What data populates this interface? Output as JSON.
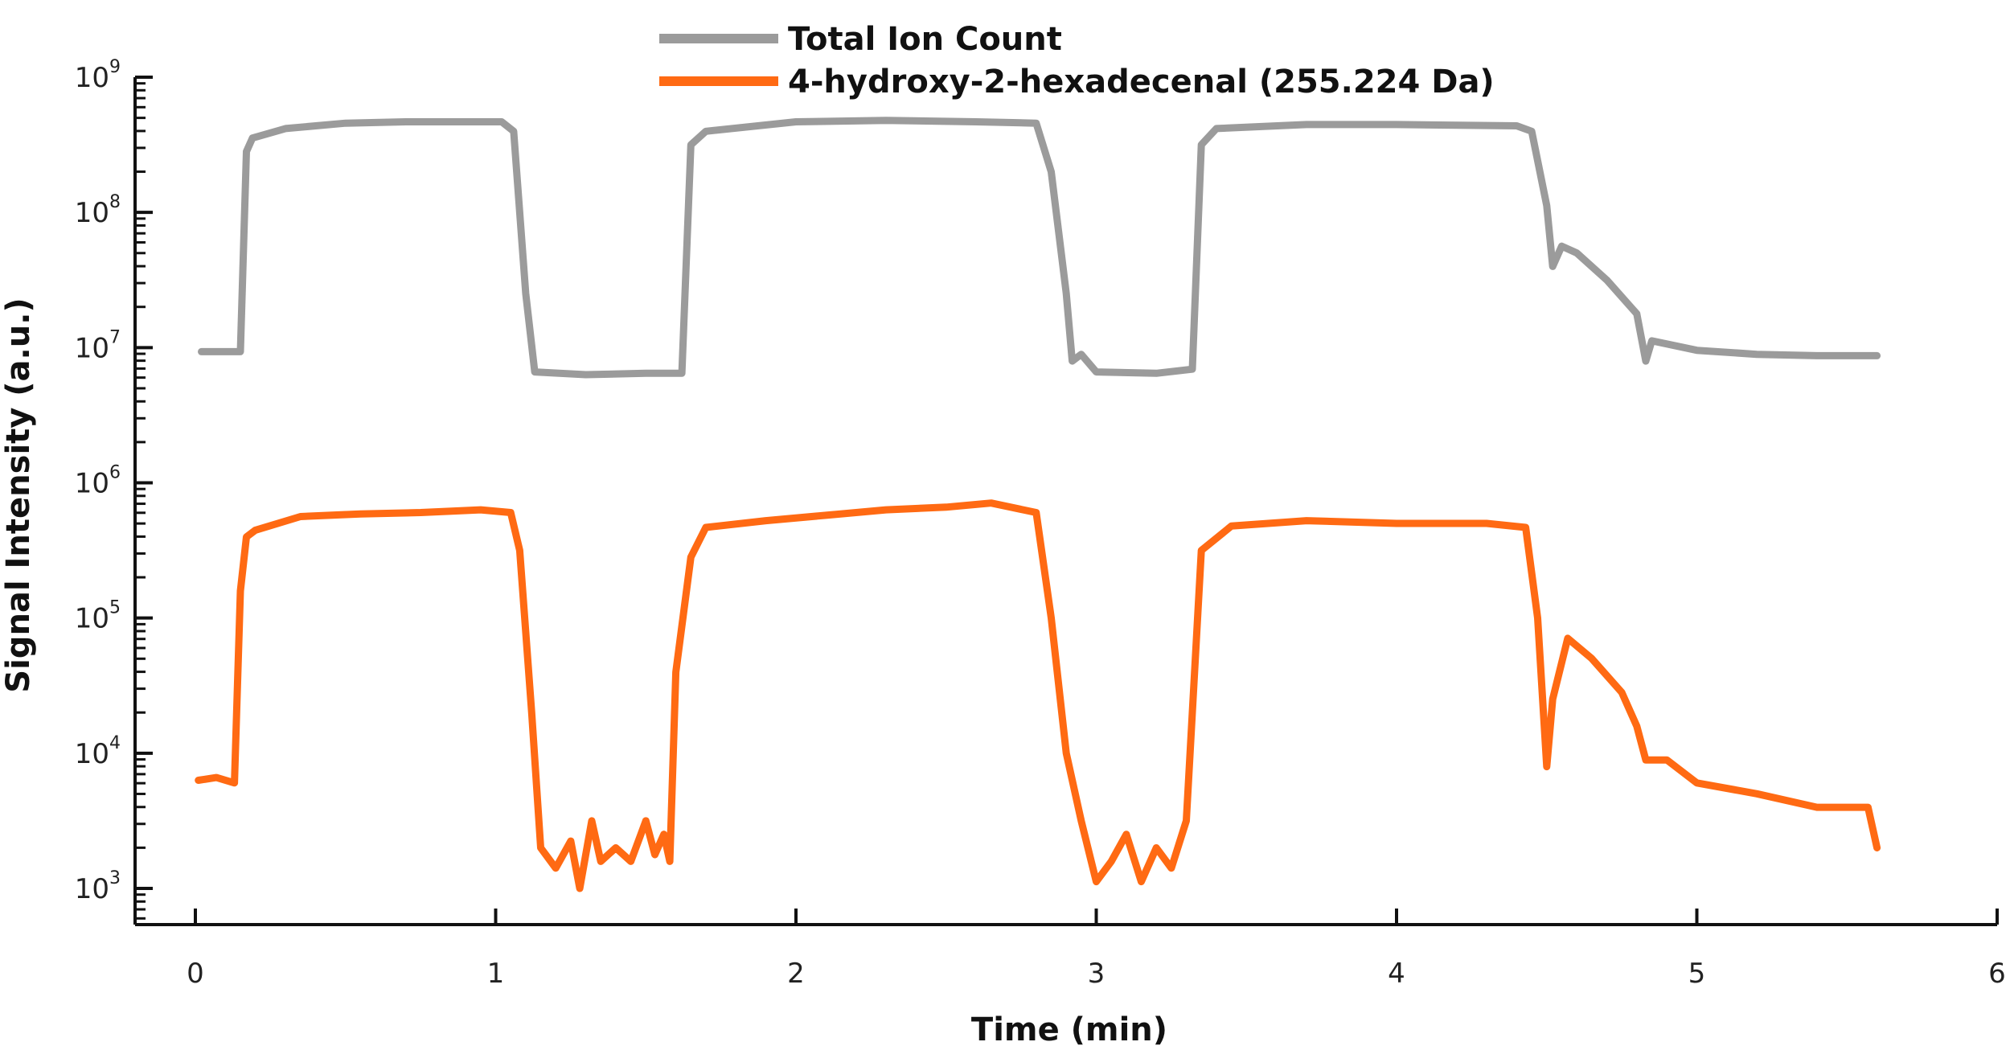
{
  "chart_data": {
    "type": "line",
    "xlabel": "Time (min)",
    "ylabel": "Signal Intensity (a.u.)",
    "xlim": [
      0,
      6
    ],
    "ylim_log10": [
      3,
      9
    ],
    "y_scale": "log",
    "x_ticks": [
      {
        "value": 0,
        "label": "0"
      },
      {
        "value": 1,
        "label": "1"
      },
      {
        "value": 2,
        "label": "2"
      },
      {
        "value": 3,
        "label": "3"
      },
      {
        "value": 4,
        "label": "4"
      },
      {
        "value": 5,
        "label": "5"
      },
      {
        "value": 6,
        "label": "6"
      }
    ],
    "y_ticks": [
      {
        "exp": 3,
        "base": "10",
        "sup": "3"
      },
      {
        "exp": 4,
        "base": "10",
        "sup": "4"
      },
      {
        "exp": 5,
        "base": "10",
        "sup": "5"
      },
      {
        "exp": 6,
        "base": "10",
        "sup": "6"
      },
      {
        "exp": 7,
        "base": "10",
        "sup": "7"
      },
      {
        "exp": 8,
        "base": "10",
        "sup": "8"
      },
      {
        "exp": 9,
        "base": "10",
        "sup": "9"
      }
    ],
    "legend_position": "top-center",
    "series": [
      {
        "name": "Total Ion Count",
        "color": "#9b9b9b",
        "points_log10": [
          [
            0.02,
            6.97
          ],
          [
            0.15,
            6.97
          ],
          [
            0.17,
            8.45
          ],
          [
            0.19,
            8.55
          ],
          [
            0.3,
            8.62
          ],
          [
            0.5,
            8.66
          ],
          [
            0.7,
            8.67
          ],
          [
            0.9,
            8.67
          ],
          [
            1.02,
            8.67
          ],
          [
            1.06,
            8.6
          ],
          [
            1.1,
            7.4
          ],
          [
            1.13,
            6.82
          ],
          [
            1.3,
            6.8
          ],
          [
            1.5,
            6.81
          ],
          [
            1.62,
            6.81
          ],
          [
            1.65,
            8.5
          ],
          [
            1.7,
            8.6
          ],
          [
            2.0,
            8.67
          ],
          [
            2.3,
            8.68
          ],
          [
            2.6,
            8.67
          ],
          [
            2.8,
            8.66
          ],
          [
            2.85,
            8.3
          ],
          [
            2.9,
            7.4
          ],
          [
            2.92,
            6.9
          ],
          [
            2.95,
            6.95
          ],
          [
            3.0,
            6.82
          ],
          [
            3.2,
            6.81
          ],
          [
            3.32,
            6.84
          ],
          [
            3.35,
            8.5
          ],
          [
            3.4,
            8.62
          ],
          [
            3.7,
            8.65
          ],
          [
            4.0,
            8.65
          ],
          [
            4.4,
            8.64
          ],
          [
            4.45,
            8.6
          ],
          [
            4.5,
            8.05
          ],
          [
            4.52,
            7.6
          ],
          [
            4.55,
            7.75
          ],
          [
            4.6,
            7.7
          ],
          [
            4.7,
            7.5
          ],
          [
            4.8,
            7.25
          ],
          [
            4.83,
            6.9
          ],
          [
            4.85,
            7.05
          ],
          [
            5.0,
            6.98
          ],
          [
            5.2,
            6.95
          ],
          [
            5.4,
            6.94
          ],
          [
            5.6,
            6.94
          ]
        ]
      },
      {
        "name": "4-hydroxy-2-hexadecenal (255.224 Da)",
        "color": "#ff6a13",
        "points_log10": [
          [
            0.01,
            3.8
          ],
          [
            0.07,
            3.82
          ],
          [
            0.13,
            3.78
          ],
          [
            0.15,
            5.2
          ],
          [
            0.17,
            5.6
          ],
          [
            0.2,
            5.65
          ],
          [
            0.35,
            5.75
          ],
          [
            0.55,
            5.77
          ],
          [
            0.75,
            5.78
          ],
          [
            0.95,
            5.8
          ],
          [
            1.05,
            5.78
          ],
          [
            1.08,
            5.5
          ],
          [
            1.12,
            4.3
          ],
          [
            1.15,
            3.3
          ],
          [
            1.2,
            3.15
          ],
          [
            1.25,
            3.35
          ],
          [
            1.28,
            3.0
          ],
          [
            1.32,
            3.5
          ],
          [
            1.35,
            3.2
          ],
          [
            1.4,
            3.3
          ],
          [
            1.45,
            3.2
          ],
          [
            1.5,
            3.5
          ],
          [
            1.53,
            3.25
          ],
          [
            1.56,
            3.4
          ],
          [
            1.58,
            3.2
          ],
          [
            1.6,
            4.6
          ],
          [
            1.65,
            5.45
          ],
          [
            1.7,
            5.67
          ],
          [
            1.9,
            5.72
          ],
          [
            2.1,
            5.76
          ],
          [
            2.3,
            5.8
          ],
          [
            2.5,
            5.82
          ],
          [
            2.65,
            5.85
          ],
          [
            2.8,
            5.78
          ],
          [
            2.85,
            5.0
          ],
          [
            2.9,
            4.0
          ],
          [
            2.95,
            3.5
          ],
          [
            3.0,
            3.05
          ],
          [
            3.05,
            3.2
          ],
          [
            3.1,
            3.4
          ],
          [
            3.15,
            3.05
          ],
          [
            3.2,
            3.3
          ],
          [
            3.25,
            3.15
          ],
          [
            3.3,
            3.5
          ],
          [
            3.35,
            5.5
          ],
          [
            3.45,
            5.68
          ],
          [
            3.7,
            5.72
          ],
          [
            4.0,
            5.7
          ],
          [
            4.3,
            5.7
          ],
          [
            4.43,
            5.67
          ],
          [
            4.47,
            5.0
          ],
          [
            4.5,
            3.9
          ],
          [
            4.52,
            4.4
          ],
          [
            4.57,
            4.85
          ],
          [
            4.65,
            4.7
          ],
          [
            4.75,
            4.45
          ],
          [
            4.8,
            4.2
          ],
          [
            4.83,
            3.95
          ],
          [
            4.9,
            3.95
          ],
          [
            5.0,
            3.78
          ],
          [
            5.2,
            3.7
          ],
          [
            5.4,
            3.6
          ],
          [
            5.57,
            3.6
          ],
          [
            5.6,
            3.3
          ]
        ]
      }
    ]
  }
}
